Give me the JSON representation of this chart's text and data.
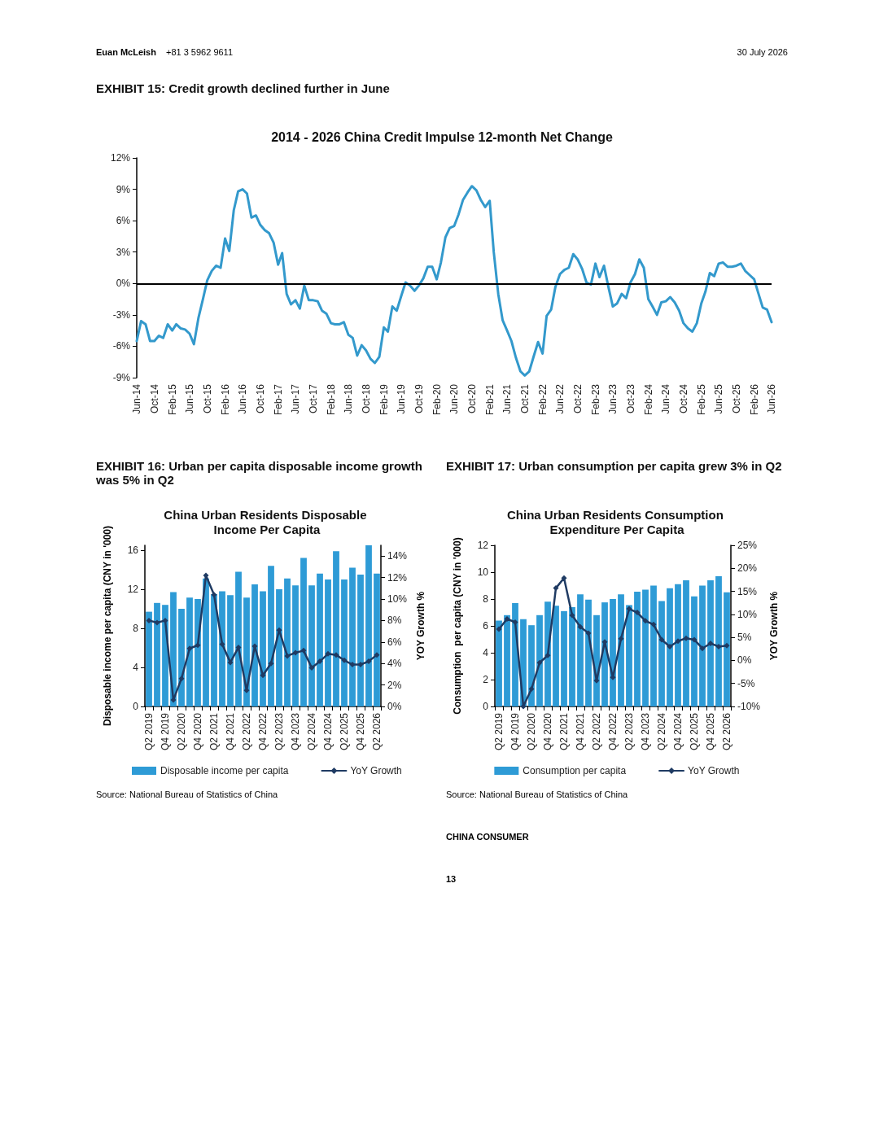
{
  "chart_data": [
    {
      "type": "line",
      "subtitle": "EXHIBIT 15: Credit growth declined further in June",
      "title": "2014 - 2026 China Credit Impulse 12-month Net Change",
      "annotations": [
        "Euan McLeish",
        "+81 3 5962 9611",
        "30 July 2026"
      ],
      "marker": "none",
      "xlim": [
        "2014-06",
        "2026-06"
      ],
      "xticks": [
        {
          "value": "2014-06",
          "label": "Jun-14"
        },
        {
          "value": "2014-10",
          "label": "Oct-14"
        },
        {
          "value": "2015-02",
          "label": "Feb-15"
        },
        {
          "value": "2015-06",
          "label": "Jun-15"
        },
        {
          "value": "2015-10",
          "label": "Oct-15"
        },
        {
          "value": "2016-02",
          "label": "Feb-16"
        },
        {
          "value": "2016-06",
          "label": "Jun-16"
        },
        {
          "value": "2016-10",
          "label": "Oct-16"
        },
        {
          "value": "2017-02",
          "label": "Feb-17"
        },
        {
          "value": "2017-06",
          "label": "Jun-17"
        },
        {
          "value": "2017-10",
          "label": "Oct-17"
        },
        {
          "value": "2018-02",
          "label": "Feb-18"
        },
        {
          "value": "2018-06",
          "label": "Jun-18"
        },
        {
          "value": "2018-10",
          "label": "Oct-18"
        },
        {
          "value": "2019-02",
          "label": "Feb-19"
        },
        {
          "value": "2019-06",
          "label": "Jun-19"
        },
        {
          "value": "2019-10",
          "label": "Oct-19"
        },
        {
          "value": "2020-02",
          "label": "Feb-20"
        },
        {
          "value": "2020-06",
          "label": "Jun-20"
        },
        {
          "value": "2020-10",
          "label": "Oct-20"
        },
        {
          "value": "2021-02",
          "label": "Feb-21"
        },
        {
          "value": "2021-06",
          "label": "Jun-21"
        },
        {
          "value": "2021-10",
          "label": "Oct-21"
        },
        {
          "value": "2022-02",
          "label": "Feb-22"
        },
        {
          "value": "2022-06",
          "label": "Jun-22"
        },
        {
          "value": "2022-10",
          "label": "Oct-22"
        },
        {
          "value": "2023-02",
          "label": "Feb-23"
        },
        {
          "value": "2023-06",
          "label": "Jun-23"
        },
        {
          "value": "2023-10",
          "label": "Oct-23"
        },
        {
          "value": "2024-02",
          "label": "Feb-24"
        },
        {
          "value": "2024-06",
          "label": "Jun-24"
        },
        {
          "value": "2024-10",
          "label": "Oct-24"
        },
        {
          "value": "2025-02",
          "label": "Feb-25"
        },
        {
          "value": "2025-06",
          "label": "Jun-25"
        },
        {
          "value": "2025-10",
          "label": "Oct-25"
        },
        {
          "value": "2026-02",
          "label": "Feb-26"
        },
        {
          "value": "2026-06",
          "label": "Jun-26"
        }
      ],
      "ylim": [
        -9,
        12
      ],
      "yticks": [
        {
          "value": -9,
          "label": "-9%"
        },
        {
          "value": -6,
          "label": "-6%"
        },
        {
          "value": -3,
          "label": "-3%"
        },
        {
          "value": 0,
          "label": "0%"
        },
        {
          "value": 3,
          "label": "3%"
        },
        {
          "value": 6,
          "label": "6%"
        },
        {
          "value": 9,
          "label": "9%"
        },
        {
          "value": 12,
          "label": "12%"
        }
      ],
      "ref_lines": [
        {
          "axis": "y",
          "value": 0,
          "color": "#000000"
        }
      ],
      "series": [
        {
          "color": "#3399cc",
          "x": [
            "2014-06",
            "2014-07",
            "2014-08",
            "2014-09",
            "2014-10",
            "2014-11",
            "2014-12",
            "2015-01",
            "2015-02",
            "2015-03",
            "2015-04",
            "2015-05",
            "2015-06",
            "2015-07",
            "2015-08",
            "2015-09",
            "2015-10",
            "2015-11",
            "2015-12",
            "2016-01",
            "2016-02",
            "2016-03",
            "2016-04",
            "2016-05",
            "2016-06",
            "2016-07",
            "2016-08",
            "2016-09",
            "2016-10",
            "2016-11",
            "2016-12",
            "2017-01",
            "2017-02",
            "2017-03",
            "2017-04",
            "2017-05",
            "2017-06",
            "2017-07",
            "2017-08",
            "2017-09",
            "2017-10",
            "2017-11",
            "2017-12",
            "2018-01",
            "2018-02",
            "2018-03",
            "2018-04",
            "2018-05",
            "2018-06",
            "2018-07",
            "2018-08",
            "2018-09",
            "2018-10",
            "2018-11",
            "2018-12",
            "2019-01",
            "2019-02",
            "2019-03",
            "2019-04",
            "2019-05",
            "2019-06",
            "2019-07",
            "2019-08",
            "2019-09",
            "2019-10",
            "2019-11",
            "2019-12",
            "2020-01",
            "2020-02",
            "2020-03",
            "2020-04",
            "2020-05",
            "2020-06",
            "2020-07",
            "2020-08",
            "2020-09",
            "2020-10",
            "2020-11",
            "2020-12",
            "2021-01",
            "2021-02",
            "2021-03",
            "2021-04",
            "2021-05",
            "2021-06",
            "2021-07",
            "2021-08",
            "2021-09",
            "2021-10",
            "2021-11",
            "2021-12",
            "2022-01",
            "2022-02",
            "2022-03",
            "2022-04",
            "2022-05",
            "2022-06",
            "2022-07",
            "2022-08",
            "2022-09",
            "2022-10",
            "2022-11",
            "2022-12",
            "2023-01",
            "2023-02",
            "2023-03",
            "2023-04",
            "2023-05",
            "2023-06",
            "2023-07",
            "2023-08",
            "2023-09",
            "2023-10",
            "2023-11",
            "2023-12",
            "2024-01",
            "2024-02",
            "2024-03",
            "2024-04",
            "2024-05",
            "2024-06",
            "2024-07",
            "2024-08",
            "2024-09",
            "2024-10",
            "2024-11",
            "2024-12",
            "2025-01",
            "2025-02",
            "2025-03",
            "2025-04",
            "2025-05",
            "2025-06",
            "2025-07",
            "2025-08",
            "2025-09",
            "2025-10",
            "2025-11",
            "2025-12",
            "2026-01",
            "2026-02",
            "2026-03",
            "2026-04",
            "2026-05",
            "2026-06"
          ],
          "values": [
            -5.5,
            -3.6,
            -3.9,
            -5.5,
            -5.5,
            -5.0,
            -5.2,
            -3.9,
            -4.5,
            -3.9,
            -4.3,
            -4.4,
            -4.8,
            -5.8,
            -3.3,
            -1.5,
            0.3,
            1.2,
            1.7,
            1.5,
            4.3,
            3.1,
            7.0,
            8.8,
            9.0,
            8.6,
            6.3,
            6.5,
            5.6,
            5.1,
            4.8,
            3.9,
            1.8,
            2.9,
            -1.0,
            -2.0,
            -1.6,
            -2.4,
            -0.2,
            -1.6,
            -1.6,
            -1.7,
            -2.6,
            -2.9,
            -3.8,
            -3.9,
            -3.9,
            -3.7,
            -4.9,
            -5.2,
            -6.9,
            -5.9,
            -6.4,
            -7.2,
            -7.6,
            -7.0,
            -4.2,
            -4.6,
            -2.2,
            -2.6,
            -1.2,
            0.1,
            -0.2,
            -0.7,
            -0.2,
            0.5,
            1.6,
            1.6,
            0.4,
            2.0,
            4.4,
            5.3,
            5.5,
            6.6,
            8.0,
            8.7,
            9.3,
            8.9,
            8.0,
            7.3,
            7.9,
            3.0,
            -1.0,
            -3.5,
            -4.5,
            -5.5,
            -7.1,
            -8.4,
            -8.8,
            -8.4,
            -7.0,
            -5.6,
            -6.7,
            -3.1,
            -2.5,
            -0.3,
            0.9,
            1.3,
            1.5,
            2.8,
            2.3,
            1.4,
            0.1,
            -0.1,
            1.9,
            0.6,
            1.7,
            -0.3,
            -2.2,
            -1.9,
            -1.0,
            -1.4,
            0.1,
            0.9,
            2.3,
            1.5,
            -1.5,
            -2.2,
            -3.0,
            -1.8,
            -1.7,
            -1.3,
            -1.8,
            -2.6,
            -3.8,
            -4.3,
            -4.6,
            -3.8,
            -1.9,
            -0.8,
            1.0,
            0.7,
            1.9,
            2.0,
            1.6,
            1.6,
            1.7,
            1.9,
            1.2,
            0.8,
            0.4,
            -0.9,
            -2.3,
            -2.5,
            -3.7
          ]
        }
      ]
    },
    {
      "type": "bar",
      "subtitle": "EXHIBIT 16: Urban per capita disposable income growth was 5% in Q2",
      "title": "China Urban Residents Disposable Income Per Capita",
      "ylabel": "Disposable income per capita (CNY in '000)",
      "y2label": "YOY Growth %",
      "annotations": [
        "Source: National Bureau of Statistics of China"
      ],
      "legend": "bottom",
      "marker": "diamond",
      "categories": [
        "Q2 2019",
        null,
        "Q4 2019",
        null,
        "Q2 2020",
        null,
        "Q4 2020",
        null,
        "Q2 2021",
        null,
        "Q4 2021",
        null,
        "Q2 2022",
        null,
        "Q4 2022",
        null,
        "Q2 2023",
        null,
        "Q4 2023",
        null,
        "Q2 2024",
        null,
        "Q4 2024",
        null,
        "Q2 2025",
        null,
        "Q4 2025",
        null,
        "Q2 2026"
      ],
      "ylim": [
        0,
        16.5
      ],
      "yticks": [
        0,
        4,
        8,
        12,
        16
      ],
      "y2lim": [
        0,
        15
      ],
      "y2ticks": [
        {
          "value": 0,
          "label": "0%"
        },
        {
          "value": 2,
          "label": "2%"
        },
        {
          "value": 4,
          "label": "4%"
        },
        {
          "value": 6,
          "label": "6%"
        },
        {
          "value": 8,
          "label": "8%"
        },
        {
          "value": 10,
          "label": "10%"
        },
        {
          "value": 12,
          "label": "12%"
        },
        {
          "value": 14,
          "label": "14%"
        }
      ],
      "series": [
        {
          "name": "Disposable income per capita",
          "color": "#2e9bd6",
          "values": [
            9.7,
            10.6,
            10.4,
            11.7,
            10.0,
            11.15,
            11.0,
            13.1,
            11.5,
            11.8,
            11.4,
            13.8,
            11.15,
            12.5,
            11.8,
            14.4,
            12.0,
            13.1,
            12.4,
            15.2,
            12.4,
            13.6,
            13.0,
            15.9,
            13.0,
            14.2,
            13.5,
            16.5,
            13.6
          ]
        },
        {
          "name": "YoY Growth",
          "type": "line",
          "axis": "y2",
          "color": "#1f3b63",
          "values": [
            8.0,
            7.8,
            8.0,
            0.6,
            2.6,
            5.4,
            5.7,
            12.2,
            10.4,
            5.8,
            4.1,
            5.5,
            1.5,
            5.6,
            2.9,
            4.0,
            7.1,
            4.7,
            5.0,
            5.2,
            3.6,
            4.2,
            4.9,
            4.8,
            4.3,
            3.9,
            3.9,
            4.2,
            4.8
          ]
        }
      ]
    },
    {
      "type": "bar",
      "subtitle": "EXHIBIT 17: Urban consumption per capita grew 3% in Q2",
      "title": "China Urban Residents Consumption Expenditure Per Capita",
      "ylabel": "Consumption  per capita (CNY in '000)",
      "y2label": "YOY Growth %",
      "annotations": [
        "Source: National Bureau of Statistics of China",
        "CHINA CONSUMER",
        "13"
      ],
      "legend": "bottom",
      "marker": "diamond",
      "categories": [
        "Q2 2019",
        null,
        "Q4 2019",
        null,
        "Q2 2020",
        null,
        "Q4 2020",
        null,
        "Q2 2021",
        null,
        "Q4 2021",
        null,
        "Q2 2022",
        null,
        "Q4 2022",
        null,
        "Q2 2023",
        null,
        "Q4 2023",
        null,
        "Q2 2024",
        null,
        "Q4 2024",
        null,
        "Q2 2025",
        null,
        "Q4 2025",
        null,
        "Q2 2026"
      ],
      "ylim": [
        0,
        12
      ],
      "yticks": [
        0,
        2,
        4,
        6,
        8,
        10,
        12
      ],
      "y2lim": [
        -10,
        25
      ],
      "y2ticks": [
        {
          "value": -10,
          "label": "-10%"
        },
        {
          "value": -5,
          "label": "-5%"
        },
        {
          "value": 0,
          "label": "0%"
        },
        {
          "value": 5,
          "label": "5%"
        },
        {
          "value": 10,
          "label": "10%"
        },
        {
          "value": 15,
          "label": "15%"
        },
        {
          "value": 20,
          "label": "20%"
        },
        {
          "value": 25,
          "label": "25%"
        }
      ],
      "series": [
        {
          "name": "Consumption per capita",
          "color": "#2e9bd6",
          "values": [
            6.4,
            6.8,
            7.7,
            6.5,
            6.05,
            6.8,
            7.8,
            7.5,
            7.1,
            7.4,
            8.35,
            7.95,
            6.8,
            7.75,
            8.0,
            8.35,
            7.55,
            8.55,
            8.7,
            9.0,
            7.85,
            8.8,
            9.1,
            9.4,
            8.2,
            9.0,
            9.4,
            9.7,
            8.5
          ]
        },
        {
          "name": "YoY Growth",
          "type": "line",
          "axis": "y2",
          "color": "#1f3b63",
          "values": [
            6.8,
            9.0,
            8.3,
            -10.0,
            -6.2,
            -0.5,
            1.1,
            15.7,
            17.9,
            9.8,
            7.3,
            5.9,
            -4.4,
            4.0,
            -3.7,
            4.7,
            11.2,
            10.4,
            8.6,
            7.8,
            4.5,
            3.0,
            4.2,
            4.8,
            4.5,
            2.6,
            3.7,
            3.0,
            3.2
          ]
        }
      ]
    }
  ]
}
